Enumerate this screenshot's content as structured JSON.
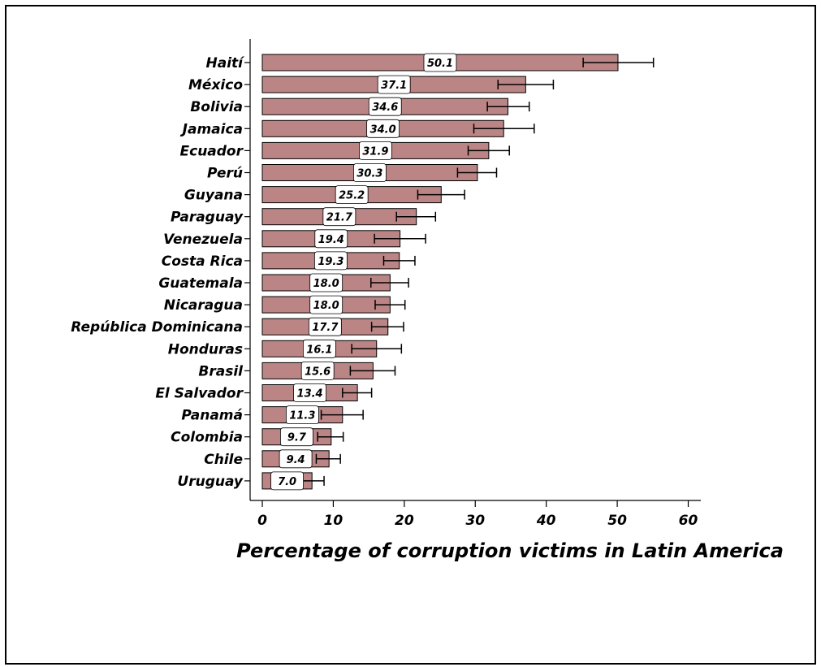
{
  "chart_data": {
    "type": "bar",
    "orientation": "horizontal",
    "xlabel": "Percentage of corruption victims in Latin America",
    "ylabel": "",
    "xlim": [
      0,
      60
    ],
    "xticks": [
      0,
      10,
      20,
      30,
      40,
      50,
      60
    ],
    "grid": false,
    "error_bars": true,
    "colors": {
      "bar": "#bc8585",
      "bar_stroke": "#000000",
      "label_box": "#ffffff"
    },
    "categories": [
      "Haití",
      "México",
      "Bolivia",
      "Jamaica",
      "Ecuador",
      "Perú",
      "Guyana",
      "Paraguay",
      "Venezuela",
      "Costa Rica",
      "Guatemala",
      "Nicaragua",
      "República Dominicana",
      "Honduras",
      "Brasil",
      "El Salvador",
      "Panamá",
      "Colombia",
      "Chile",
      "Uruguay"
    ],
    "values": [
      50.1,
      37.1,
      34.6,
      34.0,
      31.9,
      30.3,
      25.2,
      21.7,
      19.4,
      19.3,
      18.0,
      18.0,
      17.7,
      16.1,
      15.6,
      13.4,
      11.3,
      9.7,
      9.4,
      7.0
    ],
    "value_labels": [
      "50.1",
      "37.1",
      "34.6",
      "34.0",
      "31.9",
      "30.3",
      "25.2",
      "21.7",
      "19.4",
      "19.3",
      "18.0",
      "18.0",
      "17.7",
      "16.1",
      "15.6",
      "13.4",
      "11.3",
      "9.7",
      "9.4",
      "7.0"
    ],
    "error_low": [
      45.2,
      33.2,
      31.7,
      29.8,
      29.0,
      27.5,
      21.9,
      18.9,
      15.8,
      17.1,
      15.3,
      15.9,
      15.4,
      12.6,
      12.4,
      11.3,
      8.3,
      7.8,
      7.6,
      5.3
    ],
    "error_high": [
      55.1,
      41.0,
      37.6,
      38.3,
      34.8,
      33.0,
      28.5,
      24.4,
      23.0,
      21.5,
      20.6,
      20.1,
      19.9,
      19.6,
      18.7,
      15.4,
      14.2,
      11.4,
      11.0,
      8.7
    ]
  }
}
